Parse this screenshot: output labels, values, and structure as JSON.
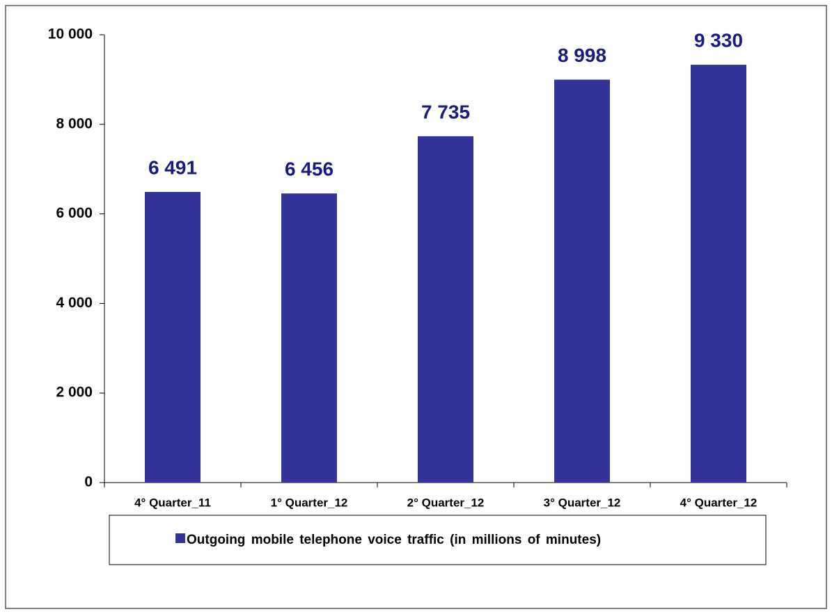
{
  "chart_data": {
    "type": "bar",
    "categories": [
      "4° Quarter_11",
      "1° Quarter_12",
      "2° Quarter_12",
      "3° Quarter_12",
      "4° Quarter_12"
    ],
    "series": [
      {
        "name": "Outgoing mobile telephone voice traffic (in millions of minutes)",
        "color": "#333399",
        "values": [
          6491,
          6456,
          7735,
          8998,
          9330
        ],
        "value_labels": [
          "6 491",
          "6 456",
          "7 735",
          "8 998",
          "9 330"
        ]
      }
    ],
    "ylim": [
      0,
      10000
    ],
    "yticks": [
      {
        "value": 0,
        "label": "0"
      },
      {
        "value": 2000,
        "label": "2 000"
      },
      {
        "value": 4000,
        "label": "4 000"
      },
      {
        "value": 6000,
        "label": "6 000"
      },
      {
        "value": 8000,
        "label": "8 000"
      },
      {
        "value": 10000,
        "label": "10 000"
      }
    ],
    "grid": false,
    "legend": "bottom"
  }
}
